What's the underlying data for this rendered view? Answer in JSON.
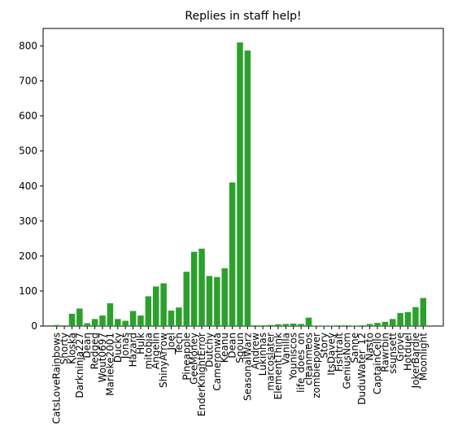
{
  "chart_data": {
    "type": "bar",
    "title": "Replies in staff help!",
    "xlabel": "",
    "ylabel": "",
    "ylim": [
      0,
      850
    ],
    "yticks": [
      0,
      100,
      200,
      300,
      400,
      500,
      600,
      700,
      800
    ],
    "bar_color": "#2ca02c",
    "categories": [
      "CatsLoveRainbows",
      "Shorty",
      "Kloska",
      "Darkninja227",
      "Dean",
      "Redged",
      "Wout0697",
      "Marieke2001",
      "Ducky",
      "Jonas",
      "Hazard",
      "Hulk",
      "mitobia",
      "Angelin",
      "ShinyArrow",
      "Joel",
      "Tech",
      "Pineapple",
      "GeeMoney",
      "EnderKnightError",
      "Dutchy",
      "Cameronwa",
      "Keanu",
      "Dean",
      "Sgoun",
      "SeasonalWarz",
      "Andrew",
      "Lukinhas",
      "marcoslater",
      "ElementThink",
      "Vanilla",
      "Youniscos",
      "life_does_on",
      "cleanmeos",
      "zombiepower",
      "Story",
      "ItsDavey",
      "Fishtrait",
      "GeniusNom",
      "Sanne",
      "DuduWater_12",
      "Nasto",
      "CaptainCello",
      "Rawrbin",
      "ssunsett",
      "Grove",
      "Hotduel",
      "JokerBardie",
      "Moonlight"
    ],
    "tick_labels": [
      "CatsLoveRainbows",
      "Shorty",
      "Kloska",
      "Darkninja227",
      "Dean",
      "Redged",
      "Wout0697",
      "Marieke2001",
      "Ducky",
      "Jonas",
      "Hazard",
      "Hulk",
      "mitobia",
      "Angelin",
      "ShinyArrow",
      "Joel",
      "Tech",
      "Pineapple",
      "GeeMoney",
      "EnderKnightError",
      "Dutchy",
      "Cameronwa",
      "Keanu",
      "Dean",
      "Sgoun",
      "SeasonalWarz",
      "Andrew",
      "Lukinhas",
      "marcoslater",
      "ElementThink",
      "Vanilla",
      "Youniscos",
      "life_does_on",
      "cleanmeos",
      "zombiepower",
      "Story",
      "ItsDavey",
      "Fishtrait",
      "GeniusNom",
      "Sanne",
      "DuduWater_12",
      "Nasto",
      "CaptainCello",
      "Rawrbin",
      "ssunsett",
      "Grove",
      "Hotduel",
      "JokerBardie",
      "Moonlight"
    ],
    "values": [
      3,
      0,
      35,
      50,
      8,
      20,
      30,
      65,
      20,
      15,
      43,
      30,
      85,
      113,
      122,
      44,
      53,
      155,
      212,
      221,
      143,
      140,
      165,
      410,
      810,
      787,
      2,
      2,
      3,
      5,
      6,
      7,
      6,
      24,
      1,
      1,
      1,
      2,
      2,
      1,
      2,
      6,
      9,
      12,
      20,
      37,
      40,
      54,
      80
    ]
  }
}
